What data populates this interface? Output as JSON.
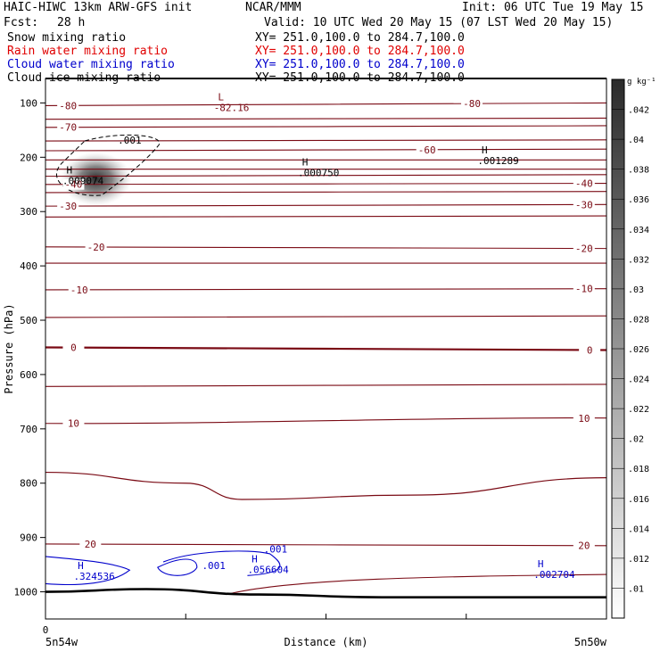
{
  "header": {
    "model": "HAIC-HIWC 13km ARW-GFS init",
    "center": "NCAR/MMM",
    "init": "Init: 06 UTC Tue 19 May 15",
    "fcst_label": "Fcst:",
    "fcst_value": "28 h",
    "valid": "Valid: 10 UTC Wed 20 May 15 (07 LST Wed 20 May 15)"
  },
  "fields": [
    {
      "name": "Snow mixing ratio",
      "xy": "XY= 251.0,100.0 to 284.7,100.0",
      "color": "#000000"
    },
    {
      "name": "Rain water mixing ratio",
      "xy": "XY= 251.0,100.0 to 284.7,100.0",
      "color": "#e00000"
    },
    {
      "name": "Cloud water mixing ratio",
      "xy": "XY= 251.0,100.0 to 284.7,100.0",
      "color": "#0000cc"
    },
    {
      "name": "Cloud ice mixing ratio",
      "xy": "XY= 251.0,100.0 to 284.7,100.0",
      "color": "#000000"
    }
  ],
  "chart_data": {
    "type": "cross-section",
    "ylabel": "Pressure (hPa)",
    "xlabel": "Distance (km)",
    "x_start_label": "5n54w",
    "x_end_label": "5n50w",
    "x_origin_tick": "0",
    "yticks": [
      100,
      200,
      300,
      400,
      500,
      600,
      700,
      800,
      900,
      1000
    ],
    "ylim": [
      1050,
      55
    ],
    "xlim": [
      0,
      1
    ],
    "xticks_minor": [
      0,
      0.25,
      0.5,
      0.75,
      1
    ],
    "colorbar": {
      "unit": "g kg⁻¹",
      "ticks": [
        ".01",
        ".012",
        ".014",
        ".016",
        ".018",
        ".02",
        ".022",
        ".024",
        ".026",
        ".028",
        ".03",
        ".032",
        ".034",
        ".036",
        ".038",
        ".04",
        ".042"
      ],
      "range": [
        0.008,
        0.044
      ]
    },
    "temperature_contours": {
      "color": "#7a0a14",
      "levels": [
        {
          "value": -80,
          "p_left": 105,
          "p_right": 100,
          "labels": [
            {
              "text": "-80",
              "x": 0.04
            },
            {
              "text": "-80",
              "x": 0.76
            }
          ]
        },
        {
          "value": -75,
          "p_left": 130,
          "p_right": 128,
          "labels": []
        },
        {
          "value": -70,
          "p_left": 145,
          "p_right": 142,
          "labels": [
            {
              "text": "-70",
              "x": 0.04
            }
          ]
        },
        {
          "value": -65,
          "p_left": 170,
          "p_right": 168,
          "labels": []
        },
        {
          "value": -60,
          "p_left": 188,
          "p_right": 185,
          "labels": [
            {
              "text": "-60",
              "x": 0.68
            }
          ]
        },
        {
          "value": -55,
          "p_left": 205,
          "p_right": 205,
          "labels": []
        },
        {
          "value": -50,
          "p_left": 222,
          "p_right": 222,
          "labels": []
        },
        {
          "value": -45,
          "p_left": 235,
          "p_right": 232,
          "labels": []
        },
        {
          "value": -40,
          "p_left": 250,
          "p_right": 248,
          "labels": [
            {
              "text": "-40",
              "x": 0.05
            },
            {
              "text": "-40",
              "x": 0.96
            }
          ]
        },
        {
          "value": -35,
          "p_left": 265,
          "p_right": 263,
          "labels": []
        },
        {
          "value": -30,
          "p_left": 290,
          "p_right": 287,
          "labels": [
            {
              "text": "-30",
              "x": 0.04
            },
            {
              "text": "-30",
              "x": 0.96
            }
          ]
        },
        {
          "value": -25,
          "p_left": 310,
          "p_right": 308,
          "labels": []
        },
        {
          "value": -20,
          "p_left": 365,
          "p_right": 368,
          "labels": [
            {
              "text": "-20",
              "x": 0.09
            },
            {
              "text": "-20",
              "x": 0.96
            }
          ]
        },
        {
          "value": -15,
          "p_left": 395,
          "p_right": 395,
          "labels": []
        },
        {
          "value": -10,
          "p_left": 444,
          "p_right": 442,
          "labels": [
            {
              "text": "-10",
              "x": 0.06
            },
            {
              "text": "-10",
              "x": 0.96
            }
          ]
        },
        {
          "value": -5,
          "p_left": 495,
          "p_right": 492,
          "labels": []
        },
        {
          "value": 0,
          "p_left": 550,
          "p_right": 555,
          "labels": [
            {
              "text": "0",
              "x": 0.05
            },
            {
              "text": "0",
              "x": 0.97
            }
          ],
          "bold": true
        },
        {
          "value": 5,
          "p_left": 622,
          "p_right": 618,
          "labels": []
        },
        {
          "value": 10,
          "p_left": 690,
          "p_right": 680,
          "labels": [
            {
              "text": "10",
              "x": 0.05
            },
            {
              "text": "10",
              "x": 0.96
            }
          ]
        },
        {
          "value": 20,
          "p_left": 912,
          "p_right": 915,
          "labels": [
            {
              "text": "20",
              "x": 0.08
            },
            {
              "text": "20",
              "x": 0.96
            }
          ]
        }
      ]
    },
    "bent_contour_pressures": [
      780,
      800,
      830,
      822,
      790
    ],
    "extrema": [
      {
        "kind": "L",
        "value": "-82.16",
        "x": 0.3,
        "p": 95,
        "color": "#7a0a14"
      },
      {
        "kind": "H",
        "value": ".009074",
        "x": 0.03,
        "p": 230,
        "color": "#000000"
      },
      {
        "kind": "H",
        "value": ".000750",
        "x": 0.45,
        "p": 215,
        "color": "#000000"
      },
      {
        "kind": "H",
        "value": ".001289",
        "x": 0.77,
        "p": 193,
        "color": "#000000"
      },
      {
        "kind": "H",
        "value": ".324536",
        "x": 0.05,
        "p": 958,
        "color": "#0000cc"
      },
      {
        "kind": "H",
        "value": ".056604",
        "x": 0.36,
        "p": 946,
        "color": "#0000cc"
      },
      {
        "kind": "H",
        "value": ".002704",
        "x": 0.87,
        "p": 955,
        "color": "#0000cc"
      }
    ],
    "contour_labels": [
      {
        "text": ".001",
        "x": 0.15,
        "p": 175,
        "color": "#000000"
      },
      {
        "text": ".001",
        "x": 0.3,
        "p": 958,
        "color": "#0000cc"
      },
      {
        "text": ".001",
        "x": 0.41,
        "p": 928,
        "color": "#0000cc"
      }
    ],
    "shaded_max": {
      "value": 0.04,
      "x": 0.09,
      "p": 240
    },
    "terrain_pressure": [
      1000,
      995,
      1005,
      1010,
      1010
    ]
  }
}
